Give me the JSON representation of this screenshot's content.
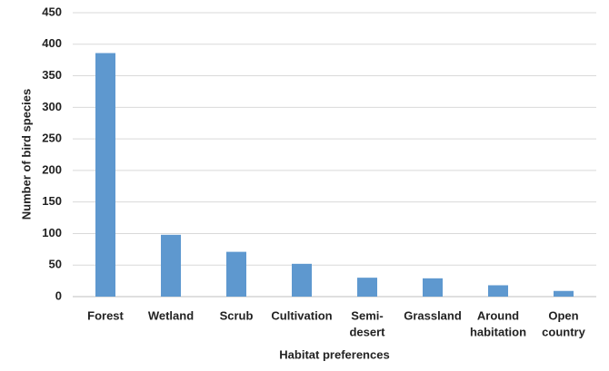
{
  "chart_data": {
    "type": "bar",
    "x_label": "Habitat preferences",
    "y_label": "Number of bird species",
    "categories": [
      [
        "Forest"
      ],
      [
        "Wetland"
      ],
      [
        "Scrub"
      ],
      [
        "Cultivation"
      ],
      [
        "Semi-",
        "desert"
      ],
      [
        "Grassland"
      ],
      [
        "Around",
        "habitation"
      ],
      [
        "Open",
        "country"
      ]
    ],
    "values": [
      386,
      98,
      71,
      52,
      30,
      29,
      18,
      9
    ],
    "color": "#5e98cf",
    "ylim": [
      0,
      450
    ],
    "yticks": [
      0,
      50,
      100,
      150,
      200,
      250,
      300,
      350,
      400,
      450
    ],
    "grid": true
  }
}
